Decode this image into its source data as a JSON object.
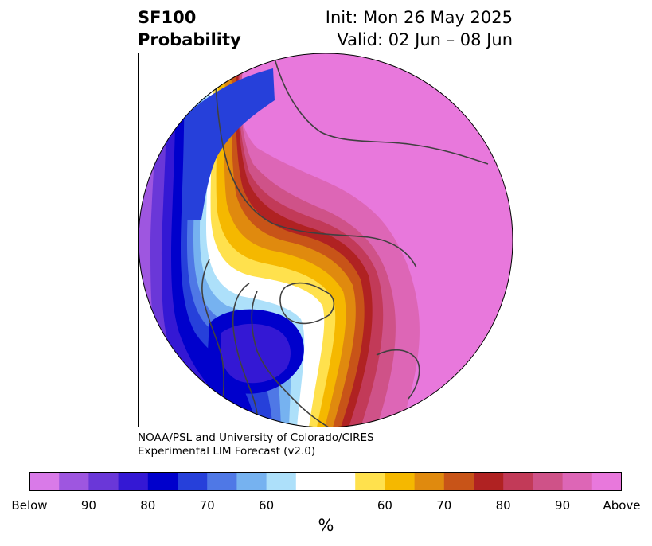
{
  "title": {
    "line1": "SF100",
    "line2": "Probability",
    "init": "Init: Mon 26 May 2025",
    "valid": "Valid: 02 Jun – 08 Jun"
  },
  "credit": {
    "line1": "NOAA/PSL and University of Colorado/CIRES",
    "line2": "Experimental LIM Forecast (v2.0)"
  },
  "colorbar": {
    "unit": "%",
    "colors": [
      "#d97ae8",
      "#9e56e0",
      "#6a37d8",
      "#3418d4",
      "#0000cc",
      "#2640da",
      "#4f78e6",
      "#76b2f0",
      "#ade0fa",
      "#ffffff",
      "#ffffff",
      "#ffe14d",
      "#f5b800",
      "#e08a0e",
      "#c85418",
      "#b02222",
      "#c23a58",
      "#cf5288",
      "#dd66b6",
      "#e878dc"
    ],
    "tick_labels": [
      "Below",
      "90",
      "80",
      "70",
      "60",
      "60",
      "70",
      "80",
      "90",
      "Above"
    ]
  },
  "map": {
    "colors": {
      "below_far": "#d97ae8",
      "below_90": "#9e56e0",
      "below_80": "#6a37d8",
      "below_75": "#3418d4",
      "below_70": "#0000cc",
      "below_65": "#2640da",
      "below_60": "#4f78e6",
      "below_55": "#76b2f0",
      "below_50": "#ade0fa",
      "neutral": "#ffffff",
      "above_50": "#ffe14d",
      "above_55": "#f5b800",
      "above_60": "#e08a0e",
      "above_65": "#c85418",
      "above_70": "#b02222",
      "above_75": "#c23a58",
      "above_80": "#cf5288",
      "above_90": "#dd66b6",
      "above_far": "#e878dc",
      "coast": "#404040"
    }
  }
}
